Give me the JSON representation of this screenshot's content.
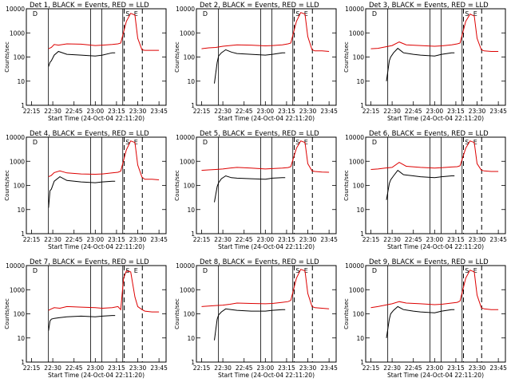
{
  "colors": {
    "events": "#000000",
    "lld": "#dd0000",
    "background": "#ffffff"
  },
  "chart_data": [
    {
      "type": "line",
      "title": "Det 1, BLACK = Events, RED = LLD",
      "xlabel": "Start Time (24-Oct-04 22:11:20)",
      "ylabel": "Counts/sec",
      "xticks": [
        "22:15",
        "22:30",
        "22:45",
        "23:00",
        "23:15",
        "23:30",
        "23:45"
      ],
      "yticks": [
        "1",
        "10",
        "100",
        "1000",
        "10000"
      ],
      "ylim": [
        1,
        10000
      ],
      "log_y": true,
      "markers": [
        "D",
        "S",
        "E"
      ],
      "series": [
        {
          "x": [
            "22:27",
            "22:29",
            "22:31",
            "22:34",
            "22:40",
            "22:50",
            "23:00",
            "23:05",
            "23:12",
            "23:16",
            "23:18",
            "23:22",
            "23:25",
            "23:28",
            "23:30",
            "23:33",
            "23:35",
            "23:40",
            "23:45"
          ],
          "values": [
            220,
            250,
            330,
            310,
            350,
            340,
            300,
            310,
            330,
            350,
            380,
            3000,
            6500,
            5500,
            600,
            200,
            190,
            190,
            190
          ]
        },
        {
          "x": [
            "22:27",
            "22:28",
            "22:29",
            "22:31",
            "22:34",
            "22:40",
            "22:50",
            "23:00",
            "23:05",
            "23:12",
            "23:14"
          ],
          "values": [
            40,
            60,
            70,
            120,
            170,
            130,
            120,
            110,
            120,
            150,
            150
          ]
        }
      ]
    },
    {
      "type": "line",
      "title": "Det 2, BLACK = Events, RED = LLD",
      "xlabel": "Start Time (24-Oct-04 22:11:20)",
      "ylabel": "Counts/sec",
      "xticks": [
        "22:15",
        "22:30",
        "22:45",
        "23:00",
        "23:15",
        "23:30",
        "23:45"
      ],
      "yticks": [
        "1",
        "10",
        "100",
        "1000",
        "10000"
      ],
      "ylim": [
        1,
        10000
      ],
      "log_y": true,
      "markers": [
        "D",
        "S",
        "E"
      ],
      "series": [
        {
          "x": [
            "22:15",
            "22:20",
            "22:25",
            "22:30",
            "22:35",
            "22:40",
            "22:50",
            "23:00",
            "23:05",
            "23:12",
            "23:16",
            "23:18",
            "23:22",
            "23:25",
            "23:28",
            "23:30",
            "23:33",
            "23:35",
            "23:40",
            "23:45"
          ],
          "values": [
            220,
            240,
            250,
            280,
            300,
            320,
            310,
            290,
            300,
            320,
            350,
            380,
            3000,
            7000,
            6000,
            700,
            200,
            180,
            180,
            170
          ]
        },
        {
          "x": [
            "22:24",
            "22:26",
            "22:27",
            "22:29",
            "22:32",
            "22:36",
            "22:40",
            "22:50",
            "23:00",
            "23:05",
            "23:12",
            "23:14"
          ],
          "values": [
            8,
            60,
            110,
            150,
            200,
            160,
            140,
            130,
            120,
            130,
            150,
            150
          ]
        }
      ]
    },
    {
      "type": "line",
      "title": "Det 3, BLACK = Events, RED = LLD",
      "xlabel": "Start Time (24-Oct-04 22:11:20)",
      "ylabel": "Counts/sec",
      "xticks": [
        "22:15",
        "22:30",
        "22:45",
        "23:00",
        "23:15",
        "23:30",
        "23:45"
      ],
      "yticks": [
        "1",
        "10",
        "100",
        "1000",
        "10000"
      ],
      "ylim": [
        1,
        10000
      ],
      "log_y": true,
      "markers": [
        "D",
        "S",
        "E"
      ],
      "series": [
        {
          "x": [
            "22:15",
            "22:20",
            "22:25",
            "22:30",
            "22:35",
            "22:40",
            "22:50",
            "23:00",
            "23:05",
            "23:12",
            "23:16",
            "23:18",
            "23:22",
            "23:25",
            "23:28",
            "23:30",
            "23:33",
            "23:35",
            "23:40",
            "23:45"
          ],
          "values": [
            220,
            230,
            260,
            300,
            420,
            320,
            300,
            280,
            290,
            320,
            350,
            380,
            3000,
            6000,
            5000,
            600,
            200,
            180,
            170,
            170
          ]
        },
        {
          "x": [
            "22:26",
            "22:28",
            "22:29",
            "22:31",
            "22:34",
            "22:38",
            "22:45",
            "22:50",
            "23:00",
            "23:05",
            "23:12",
            "23:14"
          ],
          "values": [
            10,
            70,
            100,
            150,
            230,
            150,
            130,
            120,
            110,
            130,
            150,
            150
          ]
        }
      ]
    },
    {
      "type": "line",
      "title": "Det 4, BLACK = Events, RED = LLD",
      "xlabel": "Start Time (24-Oct-04 22:11:20)",
      "ylabel": "Counts/sec",
      "xticks": [
        "22:15",
        "22:30",
        "22:45",
        "23:00",
        "23:15",
        "23:30",
        "23:45"
      ],
      "yticks": [
        "1",
        "10",
        "100",
        "1000",
        "10000"
      ],
      "ylim": [
        1,
        10000
      ],
      "log_y": true,
      "markers": [
        "D",
        "S",
        "E"
      ],
      "series": [
        {
          "x": [
            "22:27",
            "22:29",
            "22:31",
            "22:35",
            "22:40",
            "22:50",
            "23:00",
            "23:05",
            "23:12",
            "23:16",
            "23:18",
            "23:22",
            "23:25",
            "23:28",
            "23:30",
            "23:33",
            "23:35",
            "23:40",
            "23:45"
          ],
          "values": [
            230,
            260,
            340,
            400,
            330,
            300,
            290,
            300,
            330,
            350,
            390,
            3000,
            7000,
            6000,
            700,
            220,
            180,
            180,
            170
          ]
        },
        {
          "x": [
            "22:27",
            "22:28",
            "22:29",
            "22:31",
            "22:35",
            "22:40",
            "22:50",
            "23:00",
            "23:05",
            "23:12",
            "23:14"
          ],
          "values": [
            12,
            60,
            70,
            150,
            230,
            160,
            140,
            130,
            140,
            150,
            150
          ]
        }
      ]
    },
    {
      "type": "line",
      "title": "Det 5, BLACK = Events, RED = LLD",
      "xlabel": "Start Time (24-Oct-04 22:11:20)",
      "ylabel": "Counts/sec",
      "xticks": [
        "22:15",
        "22:30",
        "22:45",
        "23:00",
        "23:15",
        "23:30",
        "23:45"
      ],
      "yticks": [
        "1",
        "10",
        "100",
        "1000",
        "10000"
      ],
      "ylim": [
        1,
        10000
      ],
      "log_y": true,
      "markers": [
        "D",
        "S",
        "E"
      ],
      "series": [
        {
          "x": [
            "22:15",
            "22:20",
            "22:25",
            "22:30",
            "22:35",
            "22:40",
            "22:50",
            "23:00",
            "23:05",
            "23:12",
            "23:16",
            "23:18",
            "23:22",
            "23:25",
            "23:28",
            "23:30",
            "23:33",
            "23:35",
            "23:40",
            "23:45"
          ],
          "values": [
            420,
            440,
            460,
            480,
            520,
            560,
            520,
            480,
            500,
            520,
            550,
            600,
            3500,
            7000,
            6000,
            800,
            400,
            380,
            360,
            350
          ]
        },
        {
          "x": [
            "22:24",
            "22:26",
            "22:27",
            "22:29",
            "22:32",
            "22:36",
            "22:40",
            "22:50",
            "23:00",
            "23:05",
            "23:12",
            "23:14"
          ],
          "values": [
            20,
            90,
            130,
            190,
            250,
            210,
            200,
            190,
            180,
            200,
            210,
            210
          ]
        }
      ]
    },
    {
      "type": "line",
      "title": "Det 6, BLACK = Events, RED = LLD",
      "xlabel": "Start Time (24-Oct-04 22:11:20)",
      "ylabel": "Counts/sec",
      "xticks": [
        "22:15",
        "22:30",
        "22:45",
        "23:00",
        "23:15",
        "23:30",
        "23:45"
      ],
      "yticks": [
        "1",
        "10",
        "100",
        "1000",
        "10000"
      ],
      "ylim": [
        1,
        10000
      ],
      "log_y": true,
      "markers": [
        "D",
        "S",
        "E"
      ],
      "series": [
        {
          "x": [
            "22:15",
            "22:20",
            "22:25",
            "22:30",
            "22:35",
            "22:40",
            "22:50",
            "23:00",
            "23:05",
            "23:12",
            "23:16",
            "23:18",
            "23:22",
            "23:25",
            "23:28",
            "23:30",
            "23:33",
            "23:35",
            "23:40",
            "23:45"
          ],
          "values": [
            460,
            480,
            520,
            560,
            900,
            620,
            560,
            520,
            540,
            580,
            600,
            650,
            3500,
            7000,
            6000,
            800,
            430,
            400,
            380,
            380
          ]
        },
        {
          "x": [
            "22:26",
            "22:28",
            "22:29",
            "22:31",
            "22:34",
            "22:38",
            "22:45",
            "22:50",
            "23:00",
            "23:05",
            "23:12",
            "23:14"
          ],
          "values": [
            25,
            120,
            170,
            250,
            420,
            280,
            250,
            230,
            210,
            230,
            250,
            250
          ]
        }
      ]
    },
    {
      "type": "line",
      "title": "Det 7, BLACK = Events, RED = LLD",
      "xlabel": "Start Time (24-Oct-04 22:11:20)",
      "ylabel": "Counts/sec",
      "xticks": [
        "22:15",
        "22:30",
        "22:45",
        "23:00",
        "23:15",
        "23:30",
        "23:45"
      ],
      "yticks": [
        "1",
        "10",
        "100",
        "1000",
        "10000"
      ],
      "ylim": [
        1,
        10000
      ],
      "log_y": true,
      "markers": [
        "D",
        "S",
        "E"
      ],
      "series": [
        {
          "x": [
            "22:27",
            "22:29",
            "22:31",
            "22:35",
            "22:40",
            "22:50",
            "23:00",
            "23:05",
            "23:12",
            "23:16",
            "23:18",
            "23:20",
            "23:22",
            "23:25",
            "23:28",
            "23:30",
            "23:33",
            "23:35",
            "23:40",
            "23:45"
          ],
          "values": [
            140,
            160,
            180,
            170,
            200,
            190,
            180,
            170,
            180,
            200,
            150,
            3000,
            6000,
            5500,
            500,
            200,
            150,
            130,
            120,
            120
          ]
        },
        {
          "x": [
            "22:27",
            "22:28",
            "22:29",
            "22:31",
            "22:35",
            "22:40",
            "22:50",
            "23:00",
            "23:05",
            "23:12",
            "23:14"
          ],
          "values": [
            20,
            50,
            60,
            65,
            70,
            75,
            80,
            75,
            80,
            85,
            85
          ]
        }
      ]
    },
    {
      "type": "line",
      "title": "Det 8, BLACK = Events, RED = LLD",
      "xlabel": "Start Time (24-Oct-04 22:11:20)",
      "ylabel": "Counts/sec",
      "xticks": [
        "22:15",
        "22:30",
        "22:45",
        "23:00",
        "23:15",
        "23:30",
        "23:45"
      ],
      "yticks": [
        "1",
        "10",
        "100",
        "1000",
        "10000"
      ],
      "ylim": [
        1,
        10000
      ],
      "log_y": true,
      "markers": [
        "D",
        "S",
        "E"
      ],
      "series": [
        {
          "x": [
            "22:15",
            "22:20",
            "22:25",
            "22:30",
            "22:35",
            "22:40",
            "22:50",
            "23:00",
            "23:05",
            "23:12",
            "23:16",
            "23:18",
            "23:22",
            "23:25",
            "23:28",
            "23:30",
            "23:33",
            "23:35",
            "23:40",
            "23:45"
          ],
          "values": [
            200,
            210,
            220,
            230,
            250,
            280,
            270,
            260,
            270,
            300,
            320,
            360,
            3000,
            7000,
            6000,
            700,
            200,
            180,
            170,
            160
          ]
        },
        {
          "x": [
            "22:24",
            "22:26",
            "22:27",
            "22:29",
            "22:32",
            "22:36",
            "22:40",
            "22:50",
            "23:00",
            "23:05",
            "23:12",
            "23:14"
          ],
          "values": [
            8,
            60,
            90,
            120,
            160,
            150,
            140,
            130,
            130,
            140,
            150,
            150
          ]
        }
      ]
    },
    {
      "type": "line",
      "title": "Det 9, BLACK = Events, RED = LLD",
      "xlabel": "Start Time (24-Oct-04 22:11:20)",
      "ylabel": "Counts/sec",
      "xticks": [
        "22:15",
        "22:30",
        "22:45",
        "23:00",
        "23:15",
        "23:30",
        "23:45"
      ],
      "yticks": [
        "1",
        "10",
        "100",
        "1000",
        "10000"
      ],
      "ylim": [
        1,
        10000
      ],
      "log_y": true,
      "markers": [
        "D",
        "S",
        "E"
      ],
      "series": [
        {
          "x": [
            "22:15",
            "22:20",
            "22:25",
            "22:30",
            "22:35",
            "22:40",
            "22:50",
            "23:00",
            "23:05",
            "23:12",
            "23:16",
            "23:18",
            "23:22",
            "23:25",
            "23:28",
            "23:30",
            "23:33",
            "23:35",
            "23:40",
            "23:45"
          ],
          "values": [
            180,
            200,
            230,
            260,
            320,
            280,
            260,
            240,
            250,
            280,
            300,
            340,
            3000,
            6500,
            5500,
            600,
            180,
            160,
            150,
            150
          ]
        },
        {
          "x": [
            "22:26",
            "22:28",
            "22:29",
            "22:31",
            "22:34",
            "22:38",
            "22:45",
            "22:50",
            "23:00",
            "23:05",
            "23:12",
            "23:14"
          ],
          "values": [
            10,
            60,
            100,
            140,
            200,
            150,
            130,
            120,
            110,
            130,
            150,
            150
          ]
        }
      ]
    }
  ]
}
